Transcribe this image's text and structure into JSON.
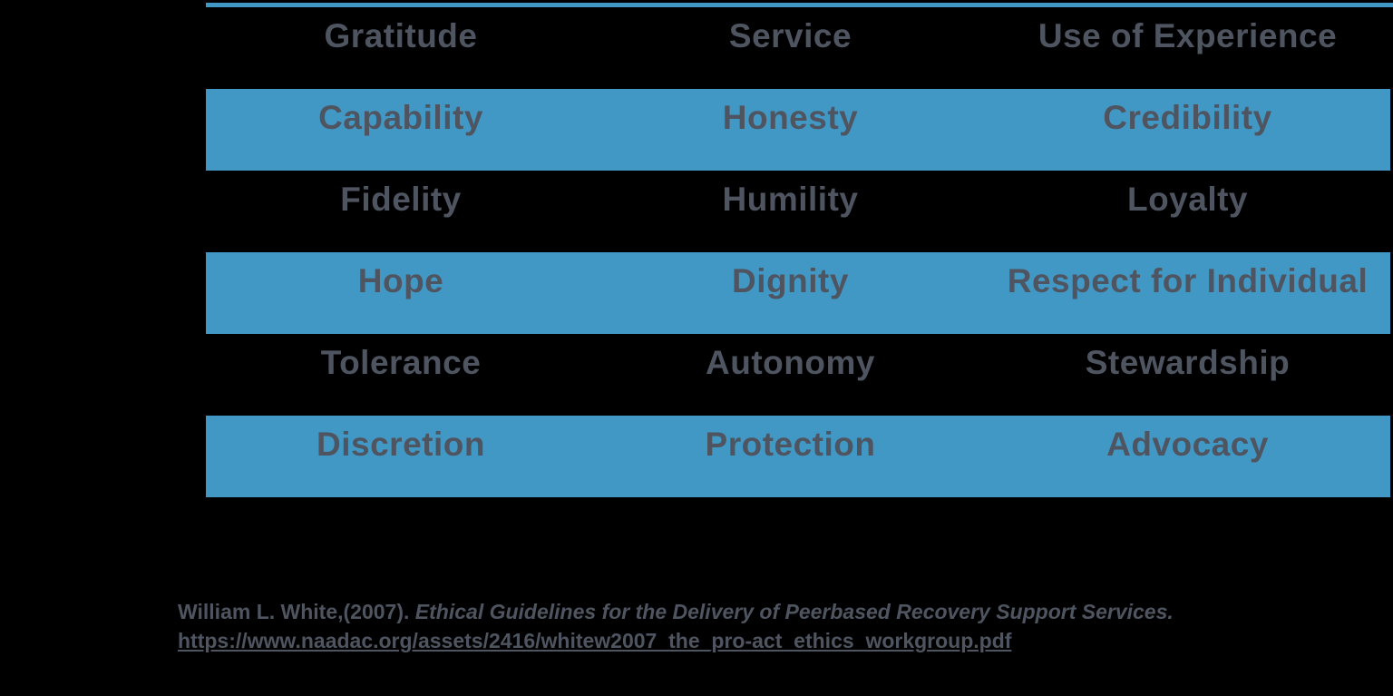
{
  "slide": {
    "background_color": "#000000",
    "accent_color": "#4298C5",
    "text_color": "#4F5560"
  },
  "table": {
    "rows": [
      {
        "shaded": false,
        "cells": [
          "Gratitude",
          "Service",
          "Use of Experience"
        ]
      },
      {
        "shaded": true,
        "cells": [
          "Capability",
          "Honesty",
          "Credibility"
        ]
      },
      {
        "shaded": false,
        "cells": [
          "Fidelity",
          "Humility",
          "Loyalty"
        ]
      },
      {
        "shaded": true,
        "cells": [
          "Hope",
          "Dignity",
          "Respect for Individual"
        ]
      },
      {
        "shaded": false,
        "cells": [
          "Tolerance",
          "Autonomy",
          "Stewardship"
        ]
      },
      {
        "shaded": true,
        "cells": [
          "Discretion",
          "Protection",
          "Advocacy"
        ]
      }
    ]
  },
  "citation": {
    "author_part": "William L. White,(2007). ",
    "title_italic": "Ethical Guidelines for the Delivery of Peerbased Recovery Support Services.",
    "url": "https://www.naadac.org/assets/2416/whitew2007_the_pro-act_ethics_workgroup.pdf"
  }
}
